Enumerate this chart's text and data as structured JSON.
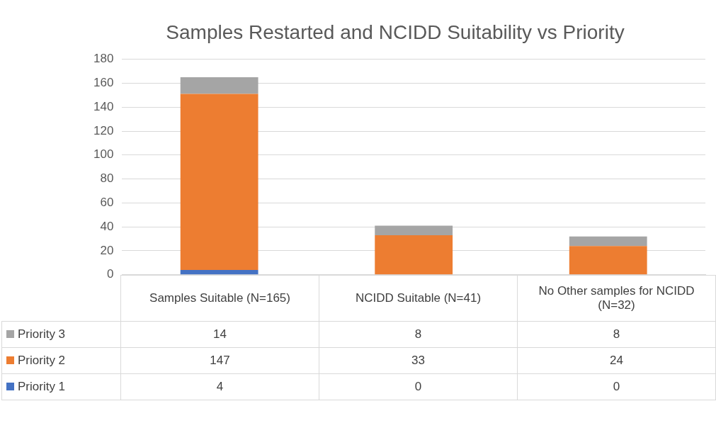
{
  "chart_data": {
    "type": "bar",
    "title": "Samples Restarted and NCIDD Suitability vs Priority",
    "categories": [
      "Samples Suitable (N=165)",
      "NCIDD Suitable (N=41)",
      "No Other samples for NCIDD (N=32)"
    ],
    "series": [
      {
        "name": "Priority 1",
        "color": "#4472c4",
        "values": [
          4,
          0,
          0
        ]
      },
      {
        "name": "Priority 2",
        "color": "#ed7d31",
        "values": [
          147,
          33,
          24
        ]
      },
      {
        "name": "Priority 3",
        "color": "#a5a5a5",
        "values": [
          14,
          8,
          8
        ]
      }
    ],
    "stacked": true,
    "ylim": [
      0,
      180
    ],
    "yticks": [
      0,
      20,
      40,
      60,
      80,
      100,
      120,
      140,
      160,
      180
    ],
    "grid": "y",
    "legend": "bottom",
    "data_labels": true
  }
}
